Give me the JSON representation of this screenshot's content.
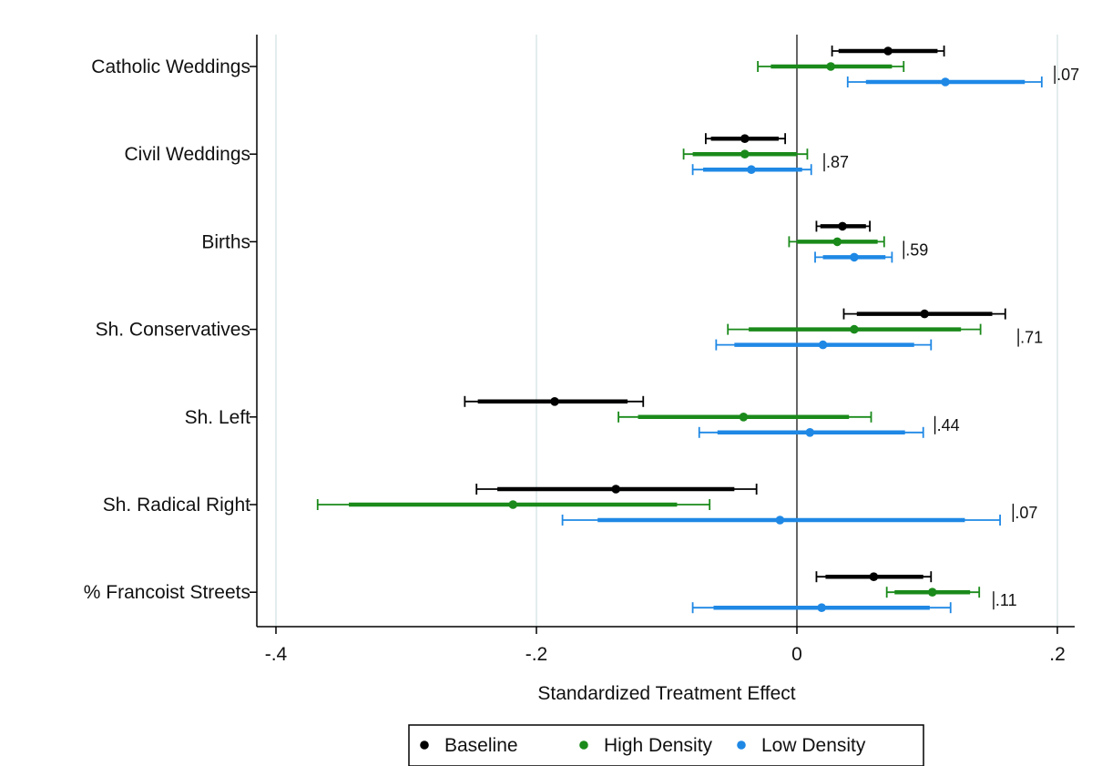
{
  "chart_data": {
    "type": "scatter",
    "subtype": "coefficient-plot",
    "xlabel": "Standardized Treatment Effect",
    "xlim": [
      -0.41,
      0.21
    ],
    "xticks": [
      -0.4,
      -0.2,
      0,
      0.2
    ],
    "xtick_labels": [
      "-.4",
      "-.2",
      "0",
      ".2"
    ],
    "gridlines": [
      -0.4,
      -0.2,
      0.2
    ],
    "reference_line": 0,
    "legend_position": "bottom",
    "categories": [
      "Catholic Weddings",
      "Civil Weddings",
      "Births",
      "Sh. Conservatives",
      "Sh. Left",
      "Sh. Radical Right",
      "% Francoist Streets"
    ],
    "series": [
      {
        "name": "Baseline",
        "color": "#000000",
        "points": [
          {
            "est": 0.07,
            "ci90": [
              0.032,
              0.108
            ],
            "ci95": [
              0.027,
              0.113
            ]
          },
          {
            "est": -0.04,
            "ci90": [
              -0.066,
              -0.014
            ],
            "ci95": [
              -0.07,
              -0.009
            ]
          },
          {
            "est": 0.035,
            "ci90": [
              0.018,
              0.053
            ],
            "ci95": [
              0.015,
              0.056
            ]
          },
          {
            "est": 0.098,
            "ci90": [
              0.046,
              0.15
            ],
            "ci95": [
              0.036,
              0.16
            ]
          },
          {
            "est": -0.186,
            "ci90": [
              -0.245,
              -0.13
            ],
            "ci95": [
              -0.255,
              -0.118
            ]
          },
          {
            "est": -0.139,
            "ci90": [
              -0.23,
              -0.048
            ],
            "ci95": [
              -0.246,
              -0.031
            ]
          },
          {
            "est": 0.059,
            "ci90": [
              0.022,
              0.097
            ],
            "ci95": [
              0.015,
              0.103
            ]
          }
        ]
      },
      {
        "name": "High Density",
        "color": "#1a8a1a",
        "points": [
          {
            "est": 0.026,
            "ci90": [
              -0.02,
              0.073
            ],
            "ci95": [
              -0.03,
              0.082
            ]
          },
          {
            "est": -0.04,
            "ci90": [
              -0.08,
              0.0
            ],
            "ci95": [
              -0.087,
              0.008
            ]
          },
          {
            "est": 0.031,
            "ci90": [
              0.0,
              0.062
            ],
            "ci95": [
              -0.006,
              0.067
            ]
          },
          {
            "est": 0.044,
            "ci90": [
              -0.037,
              0.126
            ],
            "ci95": [
              -0.053,
              0.141
            ]
          },
          {
            "est": -0.041,
            "ci90": [
              -0.122,
              0.04
            ],
            "ci95": [
              -0.137,
              0.057
            ]
          },
          {
            "est": -0.218,
            "ci90": [
              -0.344,
              -0.092
            ],
            "ci95": [
              -0.368,
              -0.067
            ]
          },
          {
            "est": 0.104,
            "ci90": [
              0.075,
              0.133
            ],
            "ci95": [
              0.069,
              0.14
            ]
          }
        ]
      },
      {
        "name": "Low Density",
        "color": "#1f88e5",
        "points": [
          {
            "est": 0.114,
            "ci90": [
              0.053,
              0.175
            ],
            "ci95": [
              0.039,
              0.188
            ]
          },
          {
            "est": -0.035,
            "ci90": [
              -0.072,
              0.004
            ],
            "ci95": [
              -0.08,
              0.011
            ]
          },
          {
            "est": 0.044,
            "ci90": [
              0.02,
              0.068
            ],
            "ci95": [
              0.014,
              0.073
            ]
          },
          {
            "est": 0.02,
            "ci90": [
              -0.048,
              0.09
            ],
            "ci95": [
              -0.062,
              0.103
            ]
          },
          {
            "est": 0.01,
            "ci90": [
              -0.061,
              0.083
            ],
            "ci95": [
              -0.075,
              0.097
            ]
          },
          {
            "est": -0.013,
            "ci90": [
              -0.153,
              0.129
            ],
            "ci95": [
              -0.18,
              0.156
            ]
          },
          {
            "est": 0.019,
            "ci90": [
              -0.064,
              0.102
            ],
            "ci95": [
              -0.08,
              0.118
            ]
          }
        ]
      }
    ],
    "annotations": [
      {
        "category": "Catholic Weddings",
        "text": ".07",
        "x": 0.198
      },
      {
        "category": "Civil Weddings",
        "text": ".87",
        "x": 0.021
      },
      {
        "category": "Births",
        "text": ".59",
        "x": 0.082
      },
      {
        "category": "Sh. Conservatives",
        "text": ".71",
        "x": 0.17
      },
      {
        "category": "Sh. Left",
        "text": ".44",
        "x": 0.106
      },
      {
        "category": "Sh. Radical Right",
        "text": ".07",
        "x": 0.166
      },
      {
        "category": "% Francoist Streets",
        "text": ".11",
        "x": 0.151
      }
    ]
  }
}
